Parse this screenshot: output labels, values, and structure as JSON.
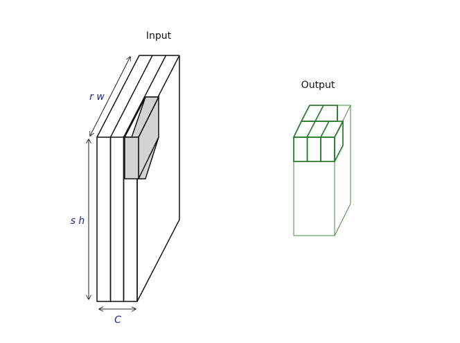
{
  "labels": {
    "input": "Input",
    "output": "Output",
    "width_dim": "r w",
    "height_dim": "s h",
    "channel_dim": "C"
  },
  "colors": {
    "annotation": "#1a2a8c",
    "output_block": "#2e7d32",
    "window": "#d3d3d3"
  }
}
